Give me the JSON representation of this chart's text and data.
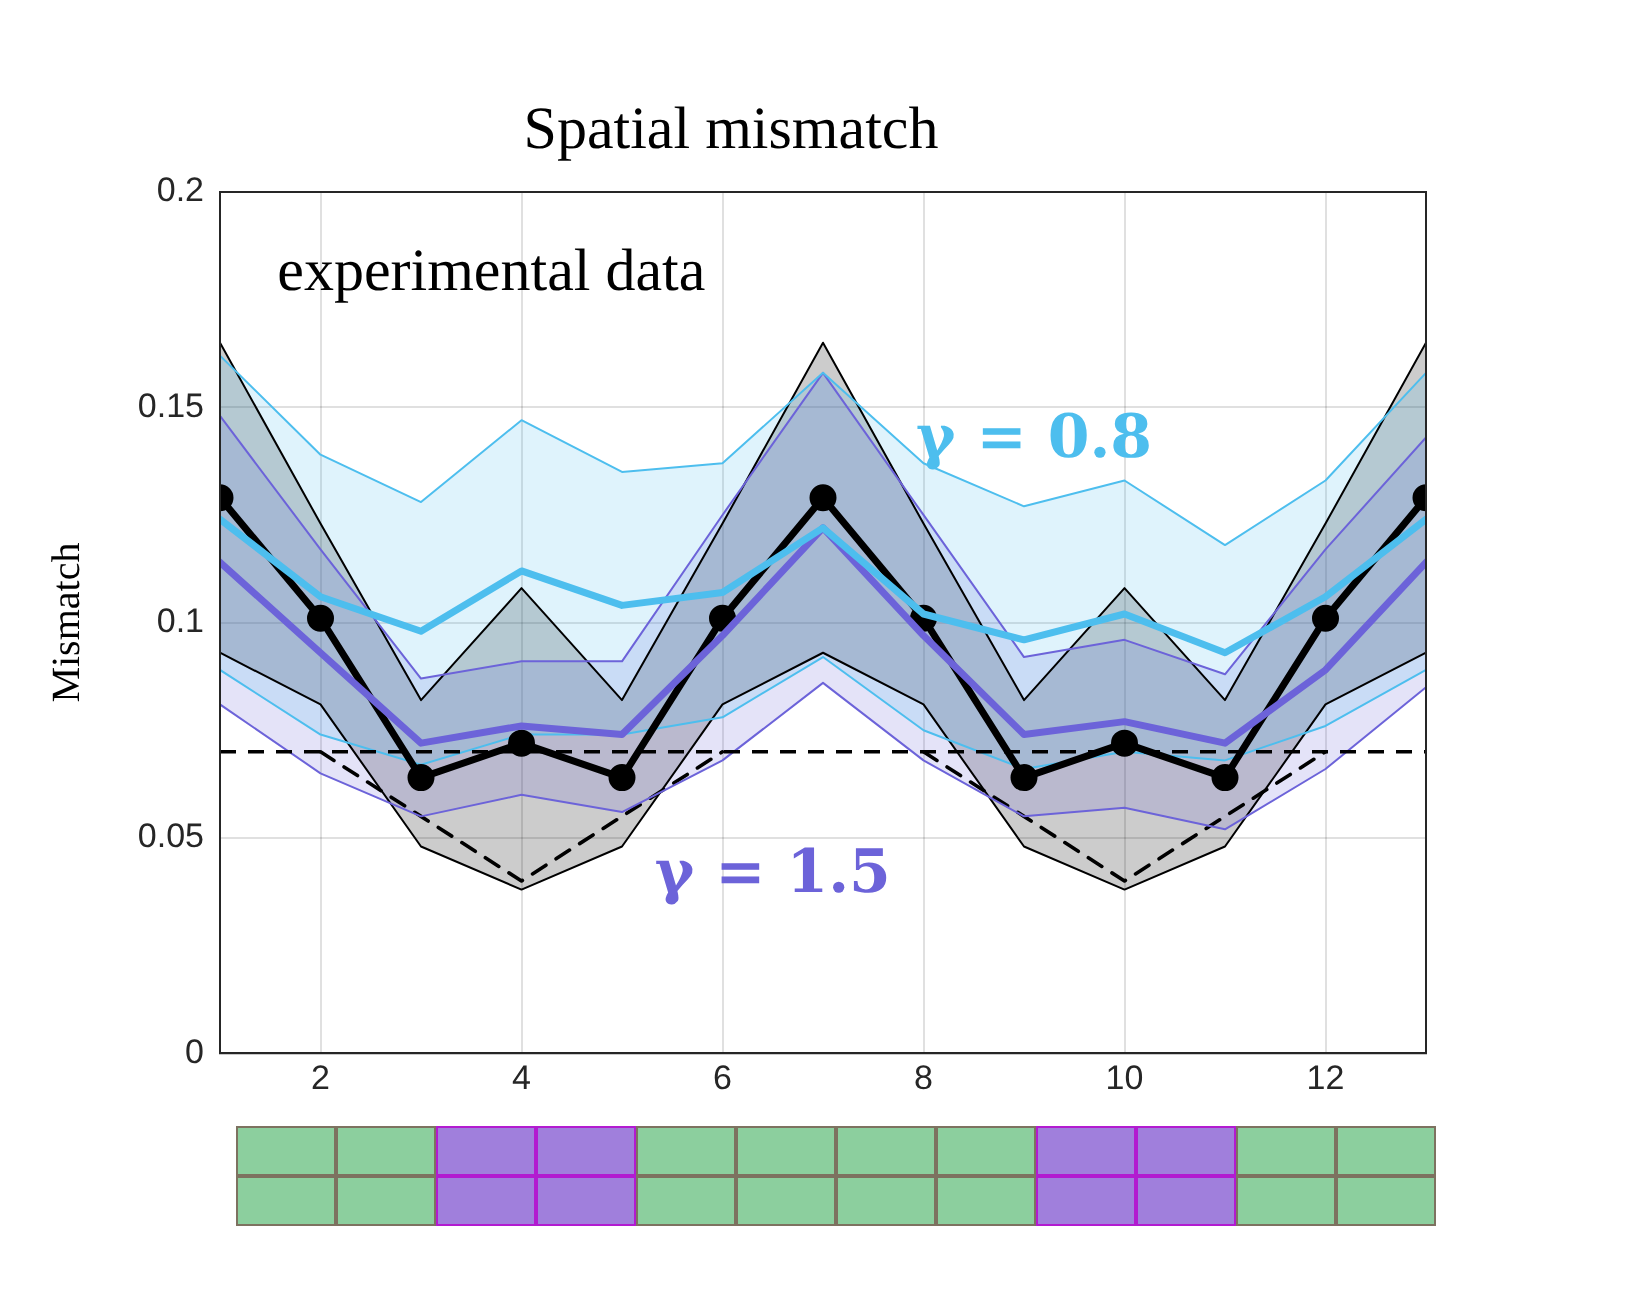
{
  "chart_data": {
    "type": "line",
    "title": "Spatial mismatch",
    "ylabel": "Mismatch",
    "x": [
      1,
      2,
      3,
      4,
      5,
      6,
      7,
      8,
      9,
      10,
      11,
      12,
      13
    ],
    "xlim": [
      1,
      13
    ],
    "xticks": [
      2,
      4,
      6,
      8,
      10,
      12
    ],
    "ylim": [
      0,
      0.2
    ],
    "yticks": [
      0,
      0.05,
      0.1,
      0.15,
      0.2
    ],
    "grid": true,
    "legend": false,
    "series": [
      {
        "name": "γ = 0.8",
        "color": "#4dbeee",
        "marker": "none",
        "values": [
          0.124,
          0.106,
          0.098,
          0.112,
          0.104,
          0.107,
          0.122,
          0.102,
          0.096,
          0.102,
          0.093,
          0.106,
          0.124
        ],
        "lower": [
          0.089,
          0.074,
          0.067,
          0.074,
          0.074,
          0.078,
          0.092,
          0.075,
          0.066,
          0.07,
          0.068,
          0.076,
          0.089
        ],
        "upper": [
          0.162,
          0.139,
          0.128,
          0.147,
          0.135,
          0.137,
          0.158,
          0.137,
          0.127,
          0.133,
          0.118,
          0.133,
          0.158
        ]
      },
      {
        "name": "γ = 1.5",
        "color": "#6c63d9",
        "marker": "none",
        "values": [
          0.114,
          0.093,
          0.072,
          0.076,
          0.074,
          0.097,
          0.122,
          0.097,
          0.074,
          0.077,
          0.072,
          0.089,
          0.114
        ],
        "lower": [
          0.081,
          0.065,
          0.055,
          0.06,
          0.056,
          0.068,
          0.086,
          0.068,
          0.055,
          0.057,
          0.052,
          0.066,
          0.085
        ],
        "upper": [
          0.148,
          0.117,
          0.087,
          0.091,
          0.091,
          0.125,
          0.158,
          0.125,
          0.092,
          0.096,
          0.088,
          0.117,
          0.143
        ]
      },
      {
        "name": "experimental data",
        "color": "#000000",
        "marker": "circle",
        "values": [
          0.129,
          0.101,
          0.064,
          0.072,
          0.064,
          0.101,
          0.129,
          0.101,
          0.064,
          0.072,
          0.064,
          0.101,
          0.129
        ],
        "lower": [
          0.093,
          0.081,
          0.048,
          0.038,
          0.048,
          0.081,
          0.093,
          0.081,
          0.048,
          0.038,
          0.048,
          0.081,
          0.093
        ],
        "upper": [
          0.165,
          0.123,
          0.082,
          0.108,
          0.082,
          0.123,
          0.165,
          0.123,
          0.082,
          0.108,
          0.082,
          0.123,
          0.165
        ]
      },
      {
        "color": "#4dbeee",
        "marker": "none",
        "values": [
          0.089,
          0.074,
          0.067,
          0.074,
          0.074,
          0.078,
          0.092,
          0.075,
          0.066,
          0.07,
          0.068,
          0.076,
          0.089
        ]
      },
      {
        "color": "#4dbeee",
        "marker": "none",
        "values": [
          0.162,
          0.139,
          0.128,
          0.147,
          0.135,
          0.137,
          0.158,
          0.137,
          0.127,
          0.133,
          0.118,
          0.133,
          0.158
        ]
      },
      {
        "color": "#6c63d9",
        "marker": "none",
        "values": [
          0.081,
          0.065,
          0.055,
          0.06,
          0.056,
          0.068,
          0.086,
          0.068,
          0.055,
          0.057,
          0.052,
          0.066,
          0.085
        ]
      },
      {
        "color": "#6c63d9",
        "marker": "none",
        "values": [
          0.148,
          0.117,
          0.087,
          0.091,
          0.091,
          0.125,
          0.158,
          0.125,
          0.092,
          0.096,
          0.088,
          0.117,
          0.143
        ]
      },
      {
        "color": "#000000",
        "marker": "none",
        "values": [
          0.093,
          0.081,
          0.048,
          0.038,
          0.048,
          0.081,
          0.093,
          0.081,
          0.048,
          0.038,
          0.048,
          0.081,
          0.093
        ]
      },
      {
        "color": "#000000",
        "marker": "none",
        "values": [
          0.165,
          0.123,
          0.082,
          0.108,
          0.082,
          0.123,
          0.165,
          0.123,
          0.082,
          0.108,
          0.082,
          0.123,
          0.165
        ]
      },
      {
        "color": "#000000",
        "marker": "none",
        "line_style": "dashed",
        "values": [
          null,
          0.07,
          0.055,
          0.04,
          0.055,
          0.07,
          null,
          0.07,
          0.055,
          0.04,
          0.055,
          0.07,
          null
        ]
      }
    ],
    "ref_lines": [
      {
        "axis": "y",
        "value": 0.07,
        "color": "#000000",
        "line_style": "dashed"
      }
    ]
  }
}
